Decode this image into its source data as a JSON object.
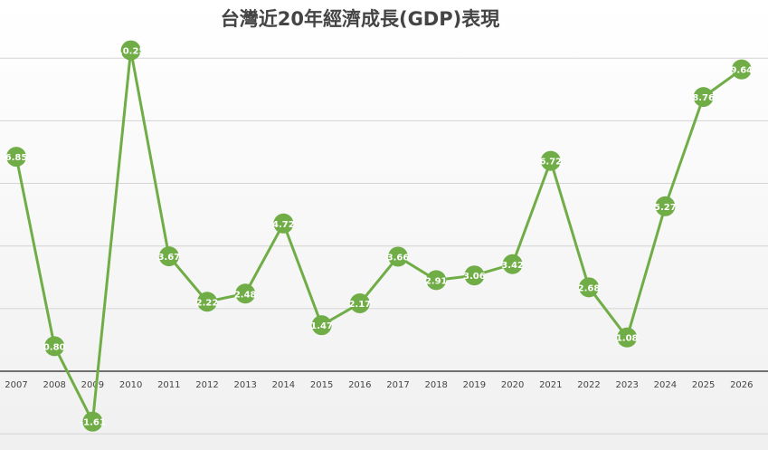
{
  "chart_data": {
    "type": "line",
    "title": "台灣近20年經濟成長(GDP)表現",
    "categories": [
      "2007",
      "2008",
      "2009",
      "2010",
      "2011",
      "2012",
      "2013",
      "2014",
      "2015",
      "2016",
      "2017",
      "2018",
      "2019",
      "2020",
      "2021",
      "2022",
      "2023",
      "2024",
      "2025",
      "2026"
    ],
    "series": [
      {
        "name": "GDP",
        "color": "#70ad47",
        "values": [
          6.85,
          0.8,
          -1.61,
          10.25,
          3.67,
          2.22,
          2.48,
          4.72,
          1.47,
          2.17,
          3.66,
          2.91,
          3.06,
          3.42,
          6.72,
          2.68,
          1.08,
          5.27,
          8.76,
          9.64
        ],
        "value_labels": [
          "6.85",
          "0.80",
          "-1.61",
          "10.25",
          "3.67",
          "2.22",
          "2.48",
          "4.72",
          "1.47",
          "2.17",
          "3.66",
          "2.91",
          "3.06",
          "3.42",
          "6.72",
          "2.68",
          "1.08",
          "5.27",
          "8.76",
          "9.64"
        ]
      }
    ],
    "ylim": [
      -2.4,
      11.8
    ],
    "yticks": [
      -2,
      0,
      2,
      4,
      6,
      8,
      10
    ],
    "grid": true
  }
}
